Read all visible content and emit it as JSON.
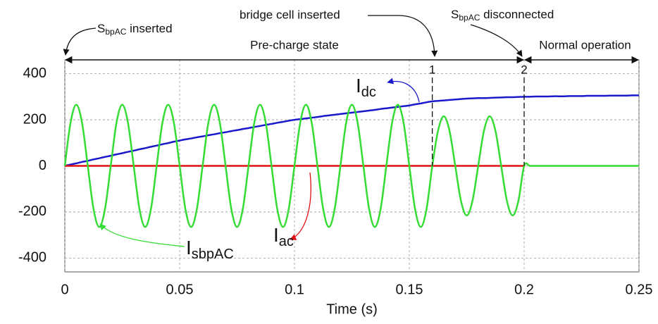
{
  "chart_data": {
    "type": "line",
    "xlabel": "Time (s)",
    "xlim": [
      0,
      0.25
    ],
    "ylim": [
      -460,
      460
    ],
    "xticks": [
      0,
      0.05,
      0.1,
      0.15,
      0.2,
      0.25
    ],
    "yticks": [
      400,
      200,
      0,
      -200,
      -400
    ],
    "grid": true,
    "x": [
      0,
      0.0025,
      0.005,
      0.0075,
      0.01,
      0.0125,
      0.015,
      0.0175,
      0.02,
      0.0225,
      0.025,
      0.0275,
      0.03,
      0.0325,
      0.035,
      0.0375,
      0.04,
      0.0425,
      0.045,
      0.0475,
      0.05,
      0.0525,
      0.055,
      0.0575,
      0.06,
      0.0625,
      0.065,
      0.0675,
      0.07,
      0.0725,
      0.075,
      0.0775,
      0.08,
      0.0825,
      0.085,
      0.0875,
      0.09,
      0.0925,
      0.095,
      0.0975,
      0.1,
      0.1025,
      0.105,
      0.1075,
      0.11,
      0.1125,
      0.115,
      0.1175,
      0.12,
      0.1225,
      0.125,
      0.1275,
      0.13,
      0.1325,
      0.135,
      0.1375,
      0.14,
      0.1425,
      0.145,
      0.1475,
      0.15,
      0.1525,
      0.155,
      0.1575,
      0.16,
      0.1625,
      0.165,
      0.1675,
      0.17,
      0.1725,
      0.175,
      0.1775,
      0.18,
      0.1825,
      0.185,
      0.1875,
      0.19,
      0.1925,
      0.195,
      0.1975,
      0.2,
      0.2025,
      0.205,
      0.2075,
      0.21,
      0.2125,
      0.215,
      0.2175,
      0.22,
      0.2225,
      0.225,
      0.2275,
      0.23,
      0.2325,
      0.235,
      0.2375,
      0.24,
      0.2425,
      0.245,
      0.2475,
      0.25
    ],
    "series": [
      {
        "label": {
          "text": "I",
          "sub": "dc"
        },
        "color": "#1a1acc",
        "values": [
          0,
          6,
          11,
          17,
          22,
          28,
          33,
          39,
          44,
          50,
          55,
          61,
          66,
          72,
          77,
          83,
          88,
          94,
          99,
          105,
          110,
          115,
          119,
          124,
          128,
          133,
          137,
          142,
          146,
          151,
          155,
          160,
          164,
          169,
          173,
          178,
          182,
          187,
          191,
          196,
          200,
          203,
          206,
          209,
          212,
          216,
          219,
          222,
          225,
          228,
          231,
          234,
          237,
          240,
          243,
          247,
          250,
          253,
          256,
          259,
          262,
          267,
          271,
          276,
          280,
          282,
          284,
          286,
          288,
          290,
          292,
          293,
          294,
          294,
          295,
          296,
          297,
          298,
          298,
          299,
          300,
          300,
          301,
          301,
          301,
          302,
          302,
          302,
          303,
          303,
          303,
          304,
          304,
          304,
          304,
          305,
          305,
          305,
          305,
          306,
          306
        ]
      },
      {
        "label": {
          "text": "I",
          "sub": "ac"
        },
        "color": "#e01010",
        "values": [
          0,
          0,
          0,
          0,
          0,
          0,
          0,
          0,
          0,
          0,
          0,
          0,
          0,
          0,
          0,
          0,
          0,
          0,
          0,
          0,
          0,
          0,
          0,
          0,
          0,
          0,
          0,
          0,
          0,
          0,
          0,
          0,
          0,
          0,
          0,
          0,
          0,
          0,
          0,
          0,
          0,
          0,
          0,
          0,
          0,
          0,
          0,
          0,
          0,
          0,
          0,
          0,
          0,
          0,
          0,
          0,
          0,
          0,
          0,
          0,
          0,
          0,
          0,
          0,
          0,
          0,
          0,
          0,
          0,
          0,
          0,
          0,
          0,
          0,
          0,
          0,
          0,
          0,
          0,
          0,
          0,
          null,
          null,
          null,
          null,
          null,
          null,
          null,
          null,
          null,
          null,
          null,
          null,
          null,
          null,
          null,
          null,
          null,
          null,
          null,
          null
        ]
      },
      {
        "label": {
          "text": "I",
          "sub": "sbpAC"
        },
        "color": "#33dd33",
        "values": [
          0,
          187,
          265,
          187,
          0,
          -187,
          -265,
          -187,
          0,
          187,
          265,
          187,
          0,
          -187,
          -265,
          -187,
          0,
          187,
          265,
          187,
          0,
          -187,
          -265,
          -187,
          0,
          187,
          265,
          187,
          0,
          -187,
          -265,
          -187,
          0,
          187,
          265,
          187,
          0,
          -187,
          -265,
          -187,
          0,
          187,
          265,
          187,
          0,
          -187,
          -265,
          -187,
          0,
          187,
          265,
          187,
          0,
          -187,
          -265,
          -187,
          0,
          187,
          265,
          187,
          0,
          -187,
          -265,
          -187,
          0,
          152,
          215,
          152,
          0,
          -152,
          -215,
          -152,
          0,
          152,
          215,
          152,
          0,
          -152,
          -215,
          -152,
          0,
          0,
          0,
          0,
          0,
          0,
          0,
          0,
          0,
          0,
          0,
          0,
          0,
          0,
          0,
          0,
          0,
          0,
          0,
          0,
          0
        ]
      }
    ],
    "phases": [
      {
        "label": "Pre-charge state",
        "from": 0,
        "to": 0.2
      },
      {
        "label": "Normal operation",
        "from": 0.2,
        "to": 0.25
      }
    ],
    "events": [
      {
        "x": 0.16,
        "label": "1"
      },
      {
        "x": 0.2,
        "label": "2"
      }
    ],
    "annotations": [
      {
        "text": "S",
        "sub": "bpAC",
        "rest": " inserted"
      },
      {
        "text": "bridge cell inserted"
      },
      {
        "text": "S",
        "sub": "bpAC",
        "rest": " disconnected"
      }
    ]
  }
}
